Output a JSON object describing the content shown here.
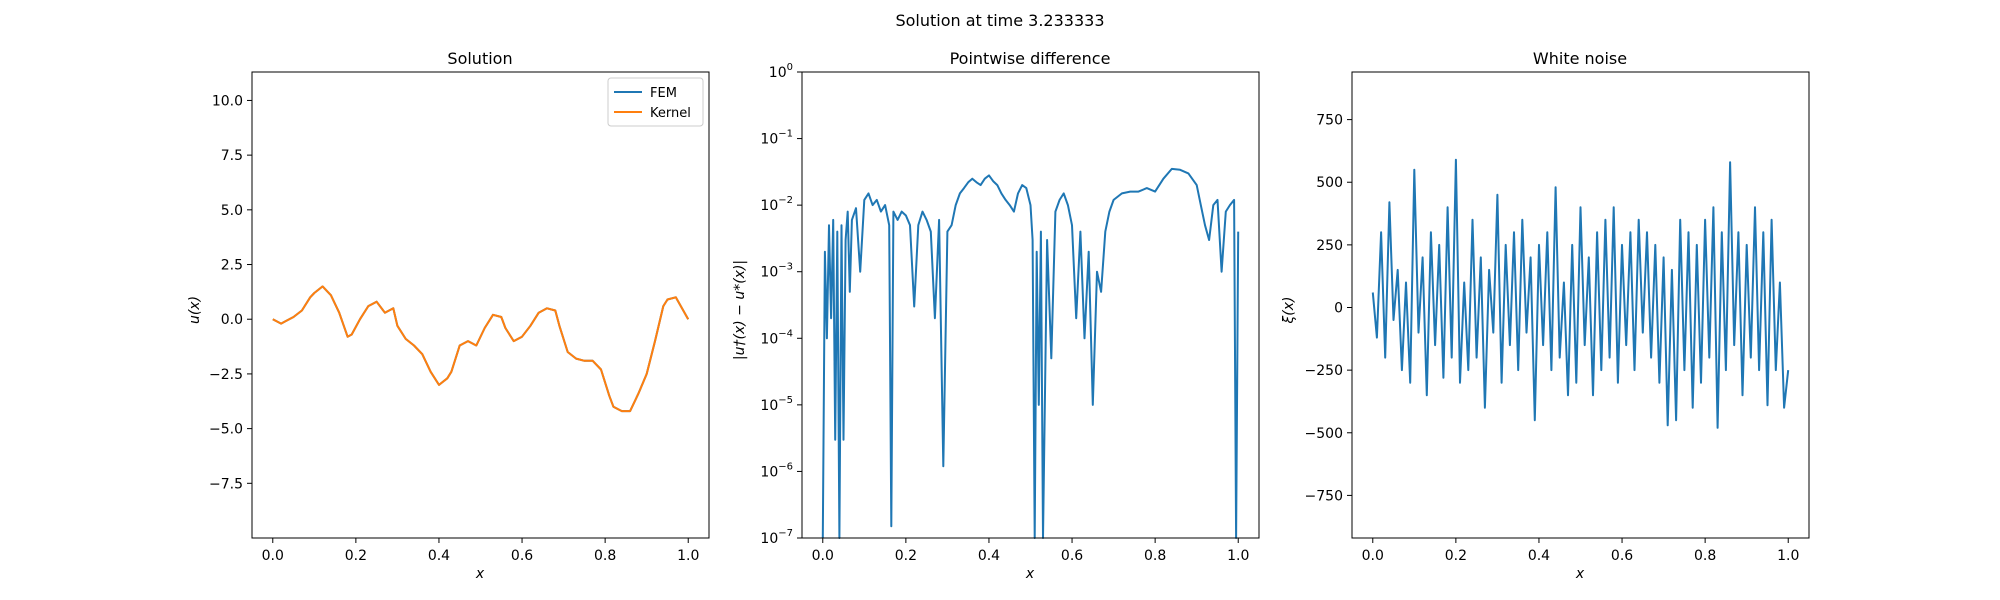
{
  "figure": {
    "suptitle": "Solution at time 3.233333"
  },
  "chart_data": [
    {
      "type": "line",
      "title": "Solution",
      "xlabel": "x",
      "ylabel": "u(x)",
      "xlim": [
        -0.05,
        1.05
      ],
      "ylim": [
        -10,
        11.3
      ],
      "xticks": [
        0.0,
        0.2,
        0.4,
        0.6,
        0.8,
        1.0
      ],
      "yticks": [
        -7.5,
        -5.0,
        -2.5,
        0.0,
        2.5,
        5.0,
        7.5,
        10.0
      ],
      "legend": {
        "position": "top-right",
        "entries": [
          "FEM",
          "Kernel"
        ]
      },
      "series": [
        {
          "name": "FEM",
          "color": "#1f77b4",
          "x": [
            0.0,
            0.02,
            0.03,
            0.05,
            0.07,
            0.09,
            0.1,
            0.12,
            0.14,
            0.16,
            0.18,
            0.19,
            0.21,
            0.23,
            0.25,
            0.27,
            0.29,
            0.3,
            0.32,
            0.34,
            0.36,
            0.38,
            0.4,
            0.42,
            0.43,
            0.45,
            0.47,
            0.49,
            0.51,
            0.53,
            0.55,
            0.56,
            0.58,
            0.6,
            0.62,
            0.64,
            0.66,
            0.68,
            0.69,
            0.71,
            0.73,
            0.75,
            0.77,
            0.79,
            0.81,
            0.82,
            0.84,
            0.86,
            0.88,
            0.9,
            0.92,
            0.94,
            0.95,
            0.97,
            1.0
          ],
          "y": [
            0.0,
            -0.2,
            -0.1,
            0.1,
            0.4,
            1.0,
            1.2,
            1.5,
            1.1,
            0.3,
            -0.8,
            -0.7,
            0.0,
            0.6,
            0.8,
            0.3,
            0.5,
            -0.3,
            -0.9,
            -1.2,
            -1.6,
            -2.4,
            -3.0,
            -2.7,
            -2.4,
            -1.2,
            -1.0,
            -1.2,
            -0.4,
            0.2,
            0.1,
            -0.4,
            -1.0,
            -0.8,
            -0.3,
            0.3,
            0.5,
            0.4,
            -0.3,
            -1.5,
            -1.8,
            -1.9,
            -1.9,
            -2.3,
            -3.5,
            -4.0,
            -4.2,
            -4.2,
            -3.4,
            -2.5,
            -1.0,
            0.6,
            0.9,
            1.0,
            0.0
          ]
        },
        {
          "name": "Kernel",
          "color": "#ff7f0e",
          "x": [
            0.0,
            0.02,
            0.03,
            0.05,
            0.07,
            0.09,
            0.1,
            0.12,
            0.14,
            0.16,
            0.18,
            0.19,
            0.21,
            0.23,
            0.25,
            0.27,
            0.29,
            0.3,
            0.32,
            0.34,
            0.36,
            0.38,
            0.4,
            0.42,
            0.43,
            0.45,
            0.47,
            0.49,
            0.51,
            0.53,
            0.55,
            0.56,
            0.58,
            0.6,
            0.62,
            0.64,
            0.66,
            0.68,
            0.69,
            0.71,
            0.73,
            0.75,
            0.77,
            0.79,
            0.81,
            0.82,
            0.84,
            0.86,
            0.88,
            0.9,
            0.92,
            0.94,
            0.95,
            0.97,
            1.0
          ],
          "y": [
            0.0,
            -0.2,
            -0.1,
            0.1,
            0.4,
            1.0,
            1.2,
            1.5,
            1.1,
            0.3,
            -0.8,
            -0.7,
            0.0,
            0.6,
            0.8,
            0.3,
            0.5,
            -0.3,
            -0.9,
            -1.2,
            -1.6,
            -2.4,
            -3.0,
            -2.7,
            -2.4,
            -1.2,
            -1.0,
            -1.2,
            -0.4,
            0.2,
            0.1,
            -0.4,
            -1.0,
            -0.8,
            -0.3,
            0.3,
            0.5,
            0.4,
            -0.3,
            -1.5,
            -1.8,
            -1.9,
            -1.9,
            -2.3,
            -3.5,
            -4.0,
            -4.2,
            -4.2,
            -3.4,
            -2.5,
            -1.0,
            0.6,
            0.9,
            1.0,
            0.0
          ]
        }
      ]
    },
    {
      "type": "line",
      "title": "Pointwise difference",
      "xlabel": "x",
      "ylabel": "|u†(x) − u*(x)|",
      "yscale": "log",
      "xlim": [
        -0.05,
        1.05
      ],
      "ylim": [
        1e-07,
        1
      ],
      "xticks": [
        0.0,
        0.2,
        0.4,
        0.6,
        0.8,
        1.0
      ],
      "yticks": [
        -7,
        -6,
        -5,
        -4,
        -3,
        -2,
        -1,
        0
      ],
      "series": [
        {
          "name": "",
          "color": "#1f77b4",
          "x": [
            0.0,
            0.005,
            0.01,
            0.015,
            0.02,
            0.025,
            0.03,
            0.035,
            0.04,
            0.045,
            0.05,
            0.055,
            0.06,
            0.065,
            0.07,
            0.08,
            0.09,
            0.1,
            0.11,
            0.12,
            0.13,
            0.14,
            0.15,
            0.16,
            0.165,
            0.17,
            0.18,
            0.19,
            0.2,
            0.21,
            0.22,
            0.23,
            0.24,
            0.25,
            0.26,
            0.27,
            0.28,
            0.29,
            0.3,
            0.31,
            0.32,
            0.33,
            0.34,
            0.35,
            0.36,
            0.37,
            0.38,
            0.39,
            0.4,
            0.41,
            0.42,
            0.43,
            0.44,
            0.45,
            0.46,
            0.47,
            0.48,
            0.49,
            0.5,
            0.505,
            0.51,
            0.515,
            0.52,
            0.525,
            0.53,
            0.54,
            0.55,
            0.56,
            0.57,
            0.58,
            0.59,
            0.6,
            0.61,
            0.62,
            0.63,
            0.64,
            0.65,
            0.66,
            0.67,
            0.68,
            0.69,
            0.7,
            0.72,
            0.74,
            0.76,
            0.78,
            0.8,
            0.82,
            0.84,
            0.86,
            0.88,
            0.9,
            0.91,
            0.92,
            0.93,
            0.94,
            0.95,
            0.96,
            0.97,
            0.98,
            0.99,
            0.995,
            1.0
          ],
          "y": [
            1e-07,
            0.002,
            0.0001,
            0.005,
            0.0002,
            0.006,
            3e-06,
            0.004,
            1e-07,
            0.005,
            3e-06,
            0.003,
            0.008,
            0.0005,
            0.006,
            0.009,
            0.001,
            0.012,
            0.015,
            0.01,
            0.012,
            0.008,
            0.01,
            0.005,
            1.5e-07,
            0.008,
            0.006,
            0.008,
            0.007,
            0.005,
            0.0003,
            0.005,
            0.008,
            0.006,
            0.004,
            0.0002,
            0.006,
            1.2e-06,
            0.004,
            0.005,
            0.01,
            0.015,
            0.018,
            0.022,
            0.025,
            0.022,
            0.02,
            0.025,
            0.028,
            0.023,
            0.02,
            0.015,
            0.012,
            0.01,
            0.008,
            0.015,
            0.02,
            0.018,
            0.01,
            0.003,
            1e-07,
            0.002,
            1e-05,
            0.004,
            1e-07,
            0.003,
            5e-05,
            0.008,
            0.012,
            0.015,
            0.01,
            0.005,
            0.0002,
            0.004,
            0.0001,
            0.002,
            1e-05,
            0.001,
            0.0005,
            0.004,
            0.008,
            0.012,
            0.015,
            0.016,
            0.016,
            0.018,
            0.016,
            0.025,
            0.035,
            0.034,
            0.03,
            0.02,
            0.01,
            0.005,
            0.003,
            0.01,
            0.012,
            0.001,
            0.008,
            0.01,
            0.012,
            1e-07,
            0.004
          ]
        }
      ]
    },
    {
      "type": "line",
      "title": "White noise",
      "xlabel": "x",
      "ylabel": "ξ(x)",
      "xlim": [
        -0.05,
        1.05
      ],
      "ylim": [
        -920,
        940
      ],
      "xticks": [
        0.0,
        0.2,
        0.4,
        0.6,
        0.8,
        1.0
      ],
      "yticks": [
        -750,
        -500,
        -250,
        0,
        250,
        500,
        750
      ],
      "series": [
        {
          "name": "",
          "color": "#1f77b4",
          "x": [
            0.0,
            0.01,
            0.02,
            0.03,
            0.04,
            0.05,
            0.06,
            0.07,
            0.08,
            0.09,
            0.1,
            0.11,
            0.12,
            0.13,
            0.14,
            0.15,
            0.16,
            0.17,
            0.18,
            0.19,
            0.2,
            0.21,
            0.22,
            0.23,
            0.24,
            0.25,
            0.26,
            0.27,
            0.28,
            0.29,
            0.3,
            0.31,
            0.32,
            0.33,
            0.34,
            0.35,
            0.36,
            0.37,
            0.38,
            0.39,
            0.4,
            0.41,
            0.42,
            0.43,
            0.44,
            0.45,
            0.46,
            0.47,
            0.48,
            0.49,
            0.5,
            0.51,
            0.52,
            0.53,
            0.54,
            0.55,
            0.56,
            0.57,
            0.58,
            0.59,
            0.6,
            0.61,
            0.62,
            0.63,
            0.64,
            0.65,
            0.66,
            0.67,
            0.68,
            0.69,
            0.7,
            0.71,
            0.72,
            0.73,
            0.74,
            0.75,
            0.76,
            0.77,
            0.78,
            0.79,
            0.8,
            0.81,
            0.82,
            0.83,
            0.84,
            0.85,
            0.86,
            0.87,
            0.88,
            0.89,
            0.9,
            0.91,
            0.92,
            0.93,
            0.94,
            0.95,
            0.96,
            0.97,
            0.98,
            0.99,
            1.0
          ],
          "y": [
            60,
            -120,
            300,
            -200,
            420,
            -50,
            150,
            -250,
            100,
            -300,
            550,
            -100,
            200,
            -350,
            300,
            -150,
            250,
            -280,
            400,
            -200,
            590,
            -300,
            100,
            -250,
            350,
            -200,
            200,
            -400,
            150,
            -100,
            450,
            -300,
            250,
            -150,
            300,
            -250,
            350,
            -100,
            200,
            -450,
            250,
            -150,
            300,
            -250,
            480,
            -200,
            100,
            -350,
            250,
            -300,
            400,
            -150,
            200,
            -350,
            300,
            -250,
            350,
            -200,
            400,
            -300,
            250,
            -150,
            300,
            -250,
            350,
            -100,
            300,
            -200,
            250,
            -300,
            200,
            -470,
            150,
            -450,
            350,
            -250,
            300,
            -400,
            250,
            -300,
            350,
            -200,
            400,
            -480,
            300,
            -250,
            580,
            -150,
            300,
            -350,
            250,
            -200,
            400,
            -250,
            300,
            -390,
            350,
            -250,
            100,
            -400,
            -250
          ]
        }
      ]
    }
  ]
}
